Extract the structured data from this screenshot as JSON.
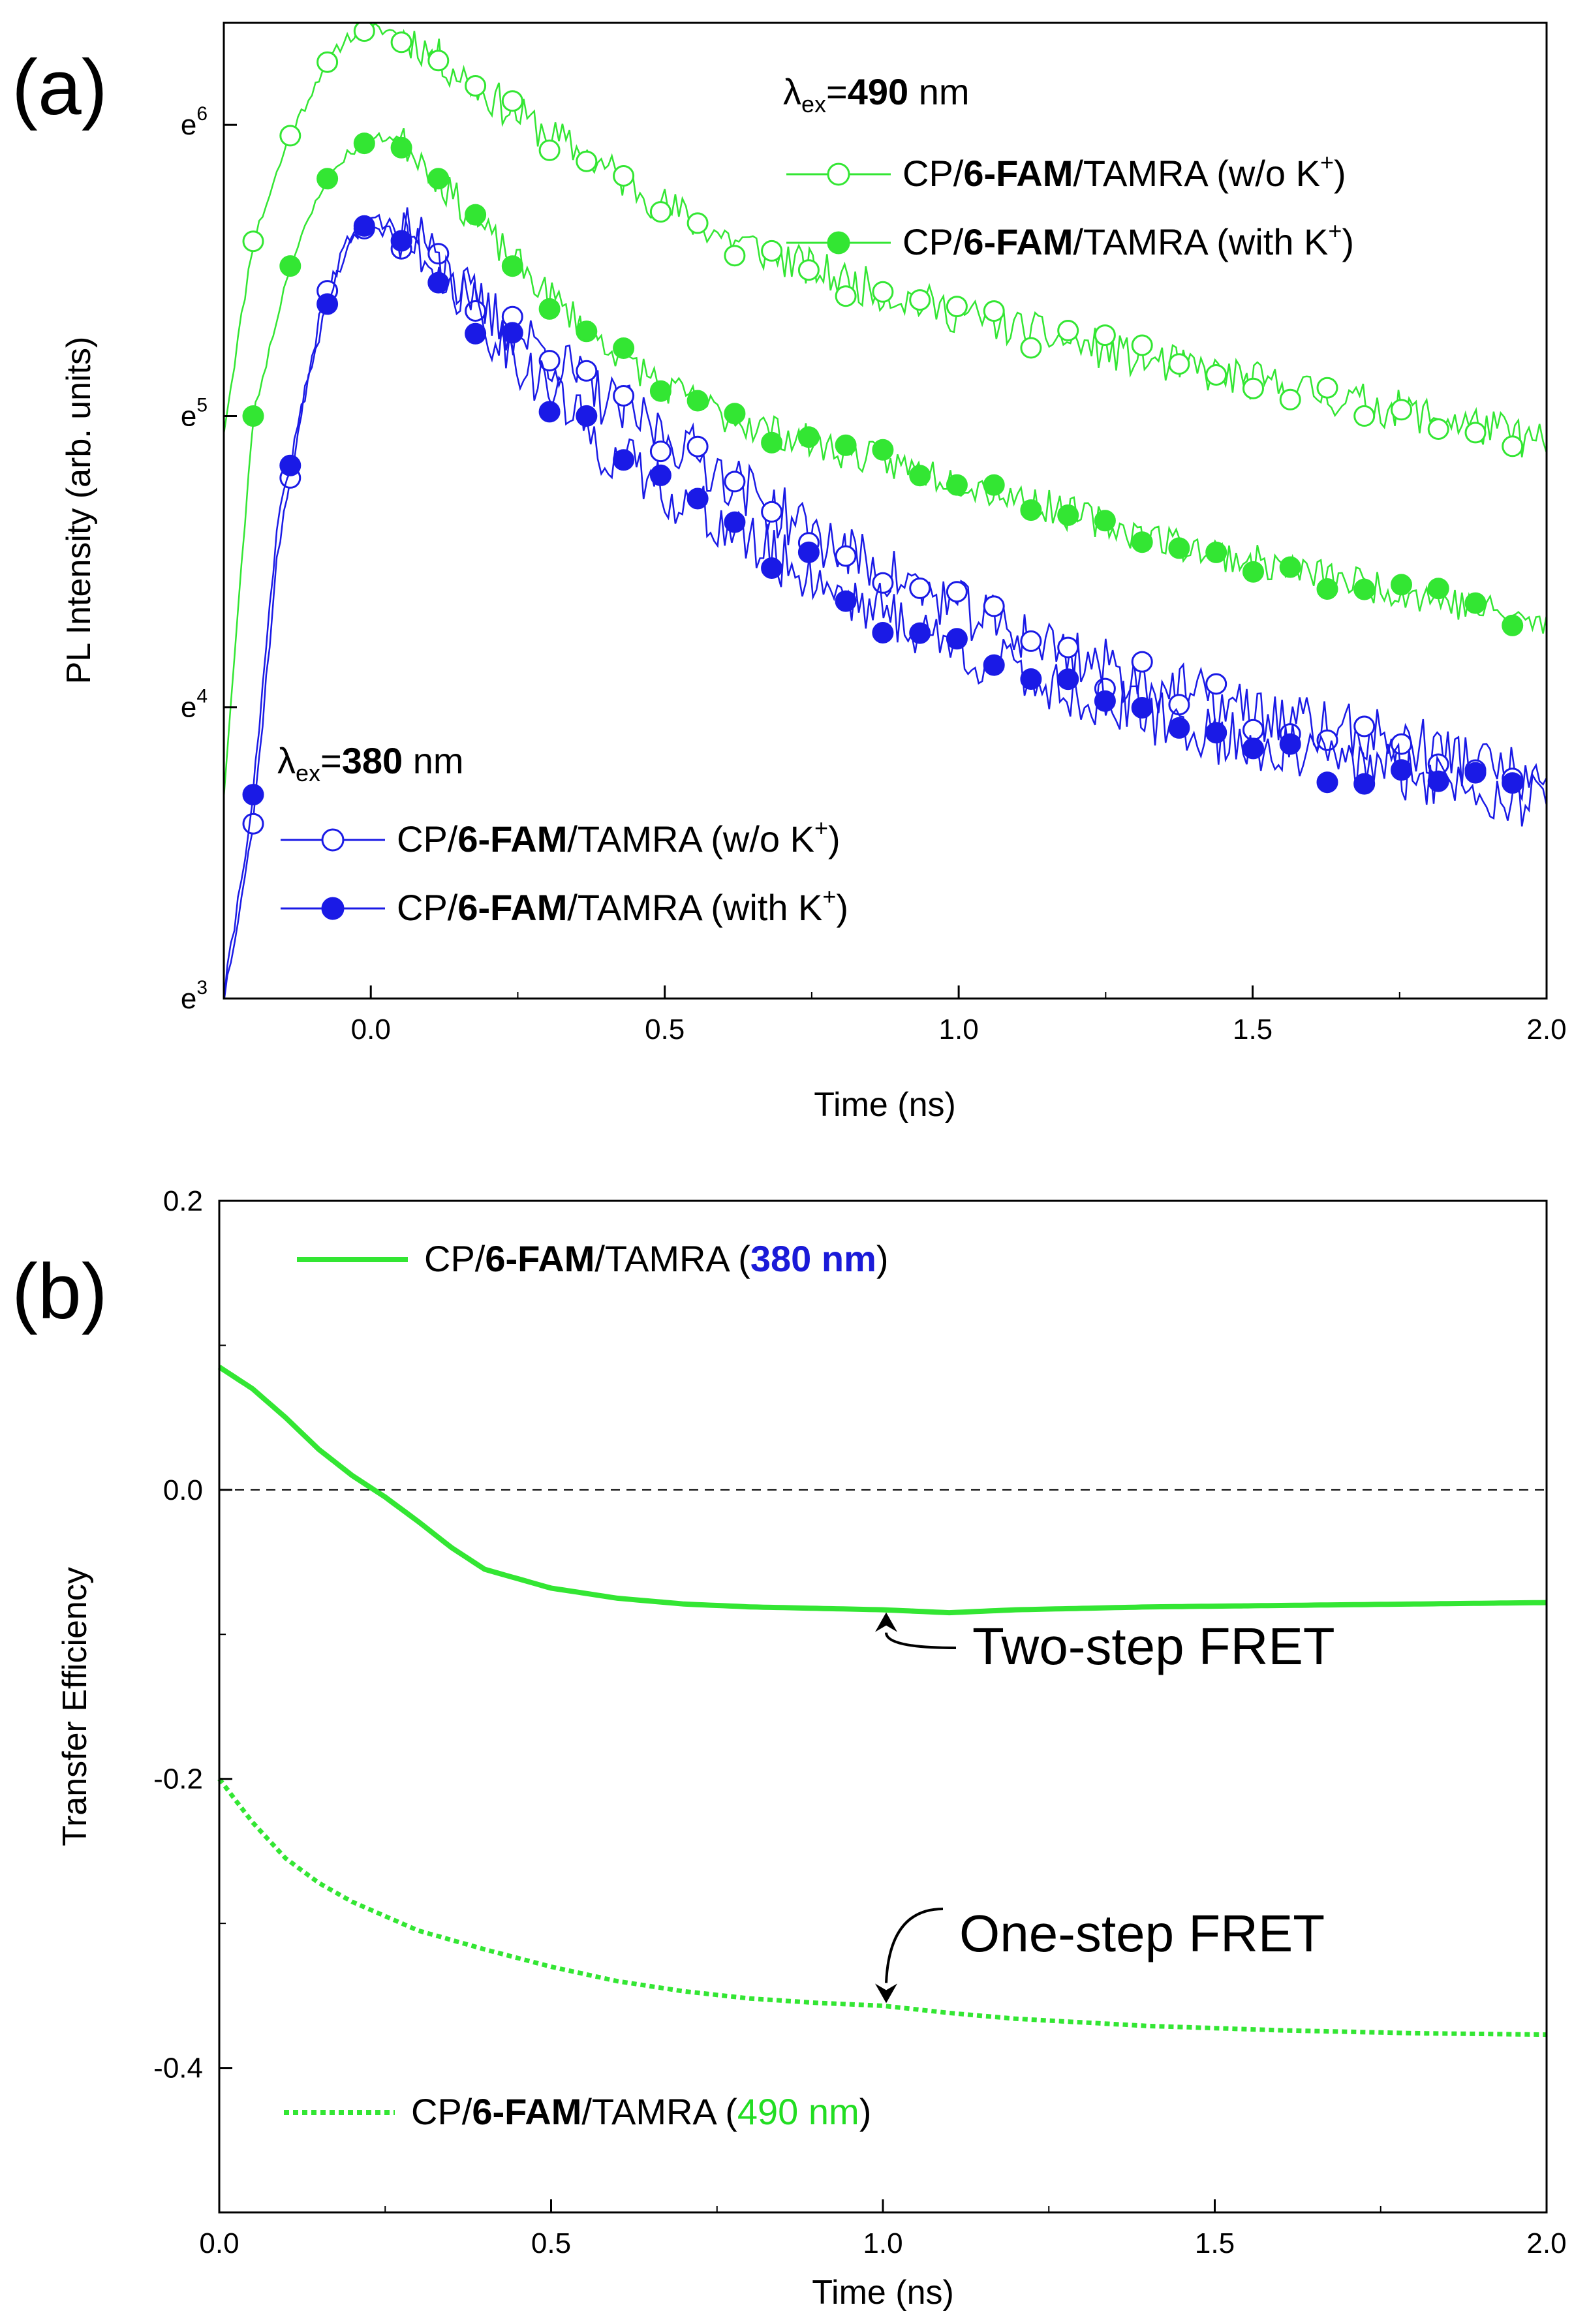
{
  "colors": {
    "green": "#33e633",
    "blue": "#1a1ae6",
    "blue_text": "#1a1ad8",
    "green_text": "#22dd22",
    "axis": "#000000"
  },
  "chart_data": [
    {
      "panel": "(a)",
      "type": "line",
      "xlabel": "Time (ns)",
      "ylabel": "PL Intensity (arb. units)",
      "xlim": [
        -0.25,
        2.0
      ],
      "ylim": [
        3,
        6.35
      ],
      "y_scale": "natural-log",
      "grid": false,
      "x_ticks": [
        "0.0",
        "0.5",
        "1.0",
        "1.5",
        "2.0"
      ],
      "y_ticks": [
        {
          "base": "e",
          "exp": "3",
          "value": 3
        },
        {
          "base": "e",
          "exp": "4",
          "value": 4
        },
        {
          "base": "e",
          "exp": "5",
          "value": 5
        },
        {
          "base": "e",
          "exp": "6",
          "value": 6
        }
      ],
      "legend_groups": [
        {
          "header_symbol": "λ",
          "header_sub": "ex",
          "header_eq": "=",
          "header_value": "490",
          "header_unit": " nm",
          "placement": "top-right",
          "entries": [
            {
              "pre": "CP/",
              "bold": "6-FAM",
              "post": "/TAMRA (w/o K",
              "sup": "+",
              "close": ")",
              "color": "#33e633",
              "marker": "open-circle"
            },
            {
              "pre": "CP/",
              "bold": "6-FAM",
              "post": "/TAMRA (with K",
              "sup": "+",
              "close": ")",
              "color": "#33e633",
              "marker": "filled-circle"
            }
          ]
        },
        {
          "header_symbol": "λ",
          "header_sub": "ex",
          "header_eq": "=",
          "header_value": "380",
          "header_unit": " nm",
          "placement": "bottom-left",
          "entries": [
            {
              "pre": "CP/",
              "bold": "6-FAM",
              "post": "/TAMRA (w/o K",
              "sup": "+",
              "close": ")",
              "color": "#1a1ae6",
              "marker": "open-circle"
            },
            {
              "pre": "CP/",
              "bold": "6-FAM",
              "post": "/TAMRA (with K",
              "sup": "+",
              "close": ")",
              "color": "#1a1ae6",
              "marker": "filled-circle"
            }
          ]
        }
      ],
      "series": [
        {
          "color": "#33e633",
          "marker": "open-circle",
          "noise": 0.07,
          "seed": 11,
          "x": [
            -0.25,
            -0.2,
            -0.14,
            -0.08,
            -0.04,
            0.0,
            0.04,
            0.08,
            0.12,
            0.2,
            0.3,
            0.4,
            0.5,
            0.6,
            0.7,
            0.8,
            0.9,
            1.0,
            1.1,
            1.2,
            1.3,
            1.4,
            1.5,
            1.6,
            1.7,
            1.8,
            1.9,
            2.0
          ],
          "y": [
            4.95,
            5.6,
            5.95,
            6.2,
            6.3,
            6.33,
            6.32,
            6.28,
            6.22,
            6.1,
            5.97,
            5.85,
            5.72,
            5.62,
            5.54,
            5.47,
            5.41,
            5.35,
            5.3,
            5.25,
            5.2,
            5.16,
            5.12,
            5.08,
            5.04,
            5.0,
            4.96,
            4.9
          ]
        },
        {
          "color": "#33e633",
          "marker": "filled-circle",
          "noise": 0.06,
          "seed": 23,
          "x": [
            -0.25,
            -0.2,
            -0.14,
            -0.08,
            -0.04,
            0.0,
            0.04,
            0.08,
            0.12,
            0.2,
            0.3,
            0.4,
            0.5,
            0.6,
            0.7,
            0.8,
            0.9,
            1.0,
            1.1,
            1.2,
            1.3,
            1.4,
            1.5,
            1.6,
            1.7,
            1.8,
            1.9,
            2.0
          ],
          "y": [
            3.7,
            5.0,
            5.5,
            5.8,
            5.9,
            5.95,
            5.96,
            5.9,
            5.8,
            5.62,
            5.42,
            5.25,
            5.1,
            5.0,
            4.94,
            4.88,
            4.83,
            4.78,
            4.72,
            4.66,
            4.6,
            4.55,
            4.5,
            4.46,
            4.42,
            4.38,
            4.33,
            4.28
          ]
        },
        {
          "color": "#1a1ae6",
          "marker": "open-circle",
          "noise": 0.1,
          "seed": 37,
          "x": [
            -0.25,
            -0.2,
            -0.16,
            -0.12,
            -0.08,
            -0.04,
            0.0,
            0.04,
            0.08,
            0.12,
            0.2,
            0.3,
            0.4,
            0.5,
            0.6,
            0.7,
            0.8,
            0.9,
            1.0,
            1.1,
            1.2,
            1.3,
            1.4,
            1.5,
            1.6,
            1.7,
            1.8,
            1.9,
            2.0
          ],
          "y": [
            3.0,
            3.6,
            4.5,
            5.0,
            5.4,
            5.6,
            5.66,
            5.62,
            5.58,
            5.5,
            5.35,
            5.22,
            5.05,
            4.94,
            4.8,
            4.66,
            4.54,
            4.44,
            4.34,
            4.26,
            4.18,
            4.1,
            4.04,
            3.98,
            3.94,
            3.9,
            3.86,
            3.8,
            3.72
          ]
        },
        {
          "color": "#1a1ae6",
          "marker": "filled-circle",
          "noise": 0.1,
          "seed": 41,
          "x": [
            -0.25,
            -0.2,
            -0.16,
            -0.12,
            -0.08,
            -0.04,
            0.0,
            0.04,
            0.08,
            0.12,
            0.2,
            0.3,
            0.4,
            0.5,
            0.6,
            0.7,
            0.8,
            0.9,
            1.0,
            1.1,
            1.2,
            1.3,
            1.4,
            1.5,
            1.6,
            1.7,
            1.8,
            1.9,
            2.0
          ],
          "y": [
            3.0,
            3.7,
            4.6,
            5.0,
            5.35,
            5.58,
            5.68,
            5.65,
            5.6,
            5.5,
            5.3,
            5.1,
            4.88,
            4.75,
            4.62,
            4.5,
            4.4,
            4.3,
            4.2,
            4.12,
            4.04,
            3.98,
            3.92,
            3.87,
            3.83,
            3.8,
            3.76,
            3.72,
            3.66
          ]
        }
      ]
    },
    {
      "panel": "(b)",
      "type": "line",
      "xlabel": "Time (ns)",
      "ylabel": "Transfer Efficiency",
      "xlim": [
        0.0,
        2.0
      ],
      "ylim": [
        -0.5,
        0.2
      ],
      "grid": false,
      "x_ticks": [
        "0.0",
        "0.5",
        "1.0",
        "1.5",
        "2.0"
      ],
      "y_ticks": [
        "0.2",
        "0.0",
        "-0.2",
        "-0.4"
      ],
      "y_tick_values": [
        0.2,
        0.0,
        -0.2,
        -0.4
      ],
      "reference_line_y": 0.0,
      "legend": [
        {
          "pre": "CP/",
          "bold": "6-FAM",
          "post": "/TAMRA (",
          "hl": "380 nm",
          "close": ")",
          "hl_color": "#1a1ad8",
          "style": "solid",
          "placement": "top-left"
        },
        {
          "pre": "CP/",
          "bold": "6-FAM",
          "post": "/TAMRA (",
          "hl": "490 nm",
          "close": ")",
          "hl_color": "#22dd22",
          "style": "dotted",
          "placement": "bottom-left"
        }
      ],
      "annotations": [
        {
          "text": "Two-step FRET",
          "points_to": [
            1.0,
            -0.083
          ]
        },
        {
          "text": "One-step FRET",
          "points_to": [
            1.0,
            -0.357
          ]
        }
      ],
      "series": [
        {
          "color": "#33e633",
          "style": "solid",
          "x": [
            0.0,
            0.05,
            0.1,
            0.15,
            0.2,
            0.25,
            0.3,
            0.35,
            0.4,
            0.5,
            0.6,
            0.7,
            0.8,
            0.9,
            1.0,
            1.1,
            1.2,
            1.4,
            1.6,
            1.8,
            2.0
          ],
          "y": [
            0.085,
            0.07,
            0.05,
            0.028,
            0.01,
            -0.005,
            -0.022,
            -0.04,
            -0.055,
            -0.068,
            -0.075,
            -0.079,
            -0.081,
            -0.082,
            -0.083,
            -0.085,
            -0.083,
            -0.081,
            -0.08,
            -0.079,
            -0.078
          ]
        },
        {
          "color": "#33e633",
          "style": "dotted",
          "x": [
            0.0,
            0.05,
            0.1,
            0.15,
            0.2,
            0.25,
            0.3,
            0.4,
            0.5,
            0.6,
            0.7,
            0.8,
            0.9,
            1.0,
            1.1,
            1.2,
            1.4,
            1.6,
            1.8,
            2.0
          ],
          "y": [
            -0.2,
            -0.23,
            -0.255,
            -0.272,
            -0.285,
            -0.295,
            -0.305,
            -0.318,
            -0.33,
            -0.34,
            -0.347,
            -0.352,
            -0.355,
            -0.357,
            -0.362,
            -0.366,
            -0.371,
            -0.374,
            -0.376,
            -0.377
          ]
        }
      ]
    }
  ]
}
